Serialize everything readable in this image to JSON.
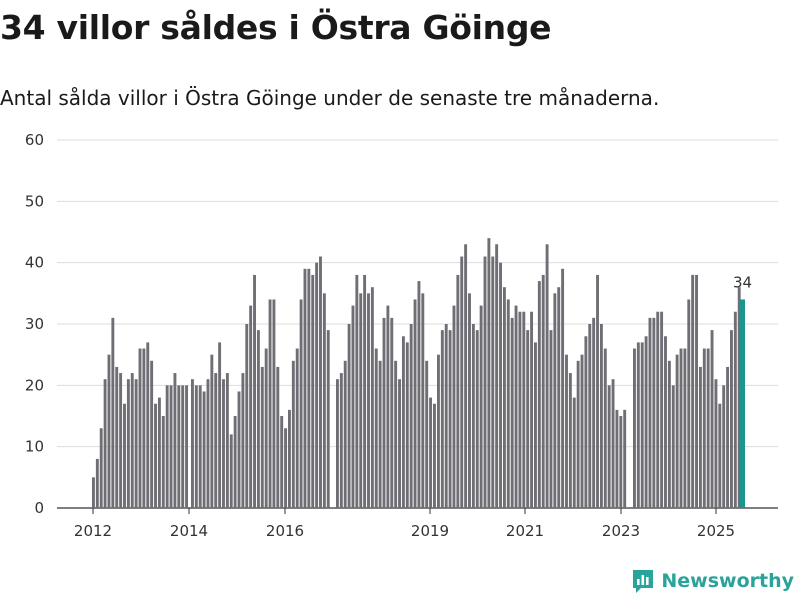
{
  "title": "34 villor såldes i Östra Göinge",
  "subtitle": "Antal sålda villor i Östra Göinge under de senaste tre månaderna.",
  "brand": {
    "name": "Newsworthy",
    "icon": "newsworthy-logo-icon",
    "color": "#2aa39a"
  },
  "chart_data": {
    "type": "bar",
    "title": "34 villor såldes i Östra Göinge",
    "subtitle": "Antal sålda villor i Östra Göinge under de senaste tre månaderna.",
    "xlabel": "",
    "ylabel": "",
    "ylim": [
      0,
      60
    ],
    "yticks": [
      0,
      10,
      20,
      30,
      40,
      50,
      60
    ],
    "xticks": [
      "2012",
      "2014",
      "2016",
      "2019",
      "2021",
      "2023",
      "2025"
    ],
    "grid": true,
    "legend": "none",
    "colors": {
      "bar": "#6f6e74",
      "highlight": "#1a968e",
      "grid": "#dddddd"
    },
    "highlight_label": "34",
    "segments": [
      {
        "values": [
          5,
          8,
          13,
          21,
          25,
          31,
          23,
          22,
          17,
          21,
          22,
          21,
          26,
          26,
          27,
          24,
          17,
          18,
          15,
          20,
          20,
          22,
          20,
          20,
          20
        ]
      },
      {
        "values": [
          21,
          20,
          20,
          19,
          21,
          25,
          22,
          27,
          21,
          22,
          12,
          15,
          19,
          22,
          30,
          33,
          38,
          29,
          23,
          26,
          34,
          34,
          23,
          15,
          13,
          16,
          24,
          26,
          34,
          39,
          39,
          38,
          40,
          41,
          35,
          29
        ]
      },
      {
        "values": [
          21,
          22,
          24,
          30,
          33,
          38,
          35,
          38,
          35,
          36,
          26,
          24,
          31,
          33,
          31,
          24,
          21,
          28,
          27,
          30,
          34,
          37,
          35,
          24,
          18,
          17
        ]
      },
      {
        "values": [
          25,
          29,
          30,
          29,
          33,
          38,
          41,
          43,
          35,
          30,
          29,
          33,
          41,
          44,
          41,
          43,
          40,
          36,
          34,
          31,
          33,
          32,
          32,
          29,
          32,
          27,
          37,
          38,
          43,
          29,
          35,
          36,
          39,
          25,
          22,
          18,
          24,
          25,
          28,
          30,
          31,
          38,
          30,
          26,
          20,
          21,
          16,
          15,
          16
        ]
      },
      {
        "values": [
          26,
          27,
          27,
          28,
          31,
          31,
          32,
          32,
          28,
          24,
          20,
          25,
          26,
          26,
          34,
          38,
          38,
          23,
          26,
          26,
          29,
          21,
          17,
          20,
          23,
          29,
          32,
          36,
          34
        ]
      }
    ]
  }
}
